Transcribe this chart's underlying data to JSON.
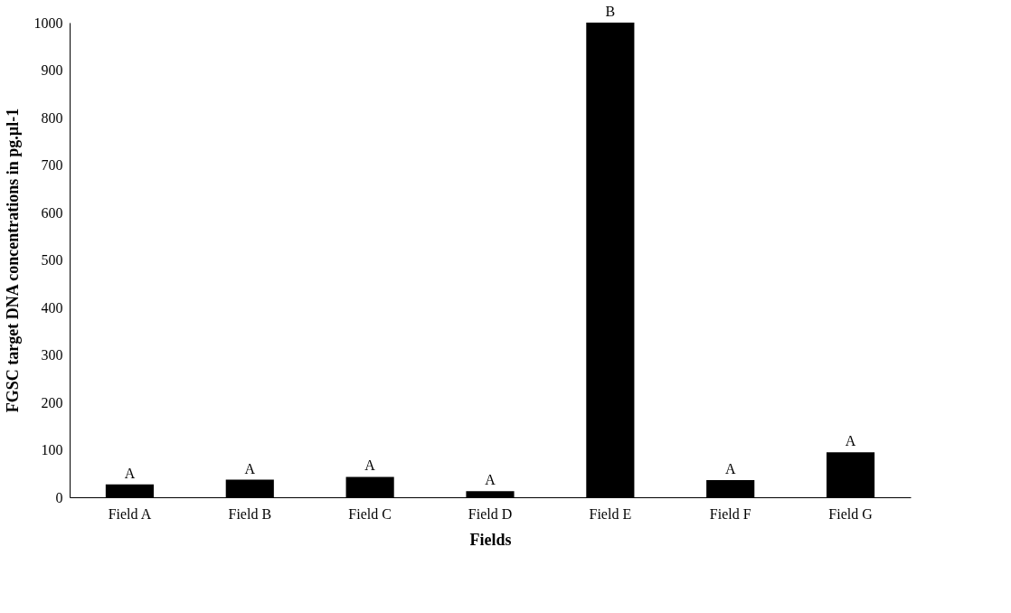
{
  "chart_data": {
    "type": "bar",
    "xlabel": "Fields",
    "ylabel": "FGSC target DNA concentrations in pg.µl-1",
    "categories": [
      "Field A",
      "Field B",
      "Field C",
      "Field D",
      "Field E",
      "Field F",
      "Field G"
    ],
    "values": [
      27,
      37,
      43,
      13,
      1000,
      36,
      95
    ],
    "color": "#000000",
    "ylim": [
      0,
      1000
    ],
    "yticks": [
      0,
      100,
      200,
      300,
      400,
      500,
      600,
      700,
      800,
      900,
      1000
    ],
    "grid": false,
    "annotations": [
      {
        "text": "A",
        "x": "Field A",
        "y": 27
      },
      {
        "text": "A",
        "x": "Field B",
        "y": 37
      },
      {
        "text": "A",
        "x": "Field C",
        "y": 43
      },
      {
        "text": "A",
        "x": "Field D",
        "y": 13
      },
      {
        "text": "B",
        "x": "Field E",
        "y": 1000
      },
      {
        "text": "A",
        "x": "Field F",
        "y": 36
      },
      {
        "text": "A",
        "x": "Field G",
        "y": 95
      }
    ]
  }
}
